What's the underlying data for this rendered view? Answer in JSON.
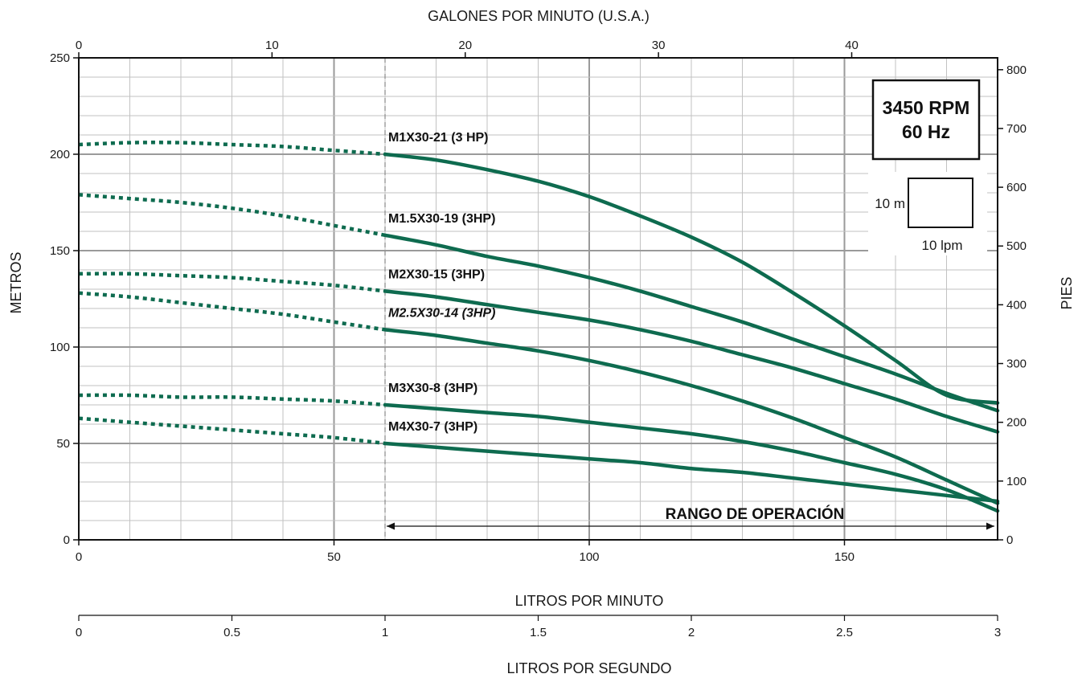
{
  "chart_data": {
    "type": "line",
    "title": "",
    "top_axis": {
      "label": "GALONES POR MINUTO (U.S.A.)",
      "ticks": [
        "0",
        "10",
        "20",
        "30",
        "40"
      ],
      "tick_values": [
        0,
        10,
        20,
        30,
        40
      ],
      "range": [
        0,
        47.55
      ]
    },
    "bottom_axis": {
      "label": "LITROS POR MINUTO",
      "ticks": [
        "0",
        "50",
        "100",
        "150"
      ],
      "tick_values": [
        0,
        50,
        100,
        150
      ],
      "range": [
        0,
        180
      ]
    },
    "secondary_bottom_axis": {
      "label": "LITROS POR SEGUNDO",
      "ticks": [
        "0",
        "0.5",
        "1",
        "1.5",
        "2",
        "2.5",
        "3"
      ],
      "tick_values": [
        0,
        0.5,
        1,
        1.5,
        2,
        2.5,
        3
      ],
      "range": [
        0,
        3
      ]
    },
    "left_axis": {
      "label": "METROS",
      "ticks": [
        "0",
        "50",
        "100",
        "150",
        "200",
        "250"
      ],
      "tick_values": [
        0,
        50,
        100,
        150,
        200,
        250
      ],
      "range": [
        0,
        250
      ]
    },
    "right_axis": {
      "label": "PIES",
      "ticks": [
        "0",
        "100",
        "200",
        "300",
        "400",
        "500",
        "600",
        "700",
        "800"
      ],
      "tick_values": [
        0,
        100,
        200,
        300,
        400,
        500,
        600,
        700,
        800
      ],
      "range": [
        0,
        820.2
      ]
    },
    "grid": true,
    "series_color": "#0e6b4f",
    "series": [
      {
        "name": "M1X30-21 (3 HP)",
        "label_italic": false,
        "dashed": [
          [
            0,
            205
          ],
          [
            10,
            206
          ],
          [
            20,
            206
          ],
          [
            30,
            205
          ],
          [
            40,
            204
          ],
          [
            50,
            202
          ],
          [
            60,
            200
          ]
        ],
        "solid": [
          [
            60,
            200
          ],
          [
            70,
            197
          ],
          [
            80,
            192
          ],
          [
            90,
            186
          ],
          [
            100,
            178
          ],
          [
            110,
            168
          ],
          [
            120,
            157
          ],
          [
            130,
            144
          ],
          [
            140,
            128
          ],
          [
            150,
            111
          ],
          [
            160,
            93
          ],
          [
            170,
            75
          ],
          [
            180,
            71
          ]
        ]
      },
      {
        "name": "M1.5X30-19 (3HP)",
        "label_italic": false,
        "dashed": [
          [
            0,
            179
          ],
          [
            10,
            177
          ],
          [
            20,
            175
          ],
          [
            30,
            172
          ],
          [
            40,
            168
          ],
          [
            50,
            163
          ],
          [
            60,
            158
          ]
        ],
        "solid": [
          [
            60,
            158
          ],
          [
            70,
            153
          ],
          [
            80,
            147
          ],
          [
            90,
            142
          ],
          [
            100,
            136
          ],
          [
            110,
            129
          ],
          [
            120,
            121
          ],
          [
            130,
            113
          ],
          [
            140,
            104
          ],
          [
            150,
            95
          ],
          [
            160,
            86
          ],
          [
            170,
            76
          ],
          [
            180,
            67
          ]
        ]
      },
      {
        "name": "M2X30-15 (3HP)",
        "label_italic": false,
        "dashed": [
          [
            0,
            138
          ],
          [
            10,
            138
          ],
          [
            20,
            137
          ],
          [
            30,
            136
          ],
          [
            40,
            134
          ],
          [
            50,
            132
          ],
          [
            60,
            129
          ]
        ],
        "solid": [
          [
            60,
            129
          ],
          [
            70,
            126
          ],
          [
            80,
            122
          ],
          [
            90,
            118
          ],
          [
            100,
            114
          ],
          [
            110,
            109
          ],
          [
            120,
            103
          ],
          [
            130,
            96
          ],
          [
            140,
            89
          ],
          [
            150,
            81
          ],
          [
            160,
            73
          ],
          [
            170,
            64
          ],
          [
            180,
            56
          ]
        ]
      },
      {
        "name": "M2.5X30-14 (3HP)",
        "label_italic": true,
        "dashed": [
          [
            0,
            128
          ],
          [
            10,
            126
          ],
          [
            20,
            123
          ],
          [
            30,
            120
          ],
          [
            40,
            117
          ],
          [
            50,
            113
          ],
          [
            60,
            109
          ]
        ],
        "solid": [
          [
            60,
            109
          ],
          [
            70,
            106
          ],
          [
            80,
            102
          ],
          [
            90,
            98
          ],
          [
            100,
            93
          ],
          [
            110,
            87
          ],
          [
            120,
            80
          ],
          [
            130,
            72
          ],
          [
            140,
            63
          ],
          [
            150,
            53
          ],
          [
            160,
            43
          ],
          [
            170,
            31
          ],
          [
            180,
            19
          ]
        ]
      },
      {
        "name": "M3X30-8 (3HP)",
        "label_italic": false,
        "dashed": [
          [
            0,
            75
          ],
          [
            10,
            75
          ],
          [
            20,
            74
          ],
          [
            30,
            74
          ],
          [
            40,
            73
          ],
          [
            50,
            72
          ],
          [
            60,
            70
          ]
        ],
        "solid": [
          [
            60,
            70
          ],
          [
            70,
            68
          ],
          [
            80,
            66
          ],
          [
            90,
            64
          ],
          [
            100,
            61
          ],
          [
            110,
            58
          ],
          [
            120,
            55
          ],
          [
            130,
            51
          ],
          [
            140,
            46
          ],
          [
            150,
            40
          ],
          [
            160,
            34
          ],
          [
            170,
            26
          ],
          [
            180,
            15
          ]
        ]
      },
      {
        "name": "M4X30-7 (3HP)",
        "label_italic": false,
        "dashed": [
          [
            0,
            63
          ],
          [
            10,
            61
          ],
          [
            20,
            59
          ],
          [
            30,
            57
          ],
          [
            40,
            55
          ],
          [
            50,
            53
          ],
          [
            60,
            50
          ]
        ],
        "solid": [
          [
            60,
            50
          ],
          [
            70,
            48
          ],
          [
            80,
            46
          ],
          [
            90,
            44
          ],
          [
            100,
            42
          ],
          [
            110,
            40
          ],
          [
            120,
            37
          ],
          [
            130,
            35
          ],
          [
            140,
            32
          ],
          [
            150,
            29
          ],
          [
            160,
            26
          ],
          [
            170,
            23
          ],
          [
            180,
            20
          ]
        ]
      }
    ],
    "annotations": {
      "speed_line1": "3450 RPM",
      "speed_line2": "60 Hz",
      "scale_height": "10 m",
      "scale_width": "10 lpm",
      "operating_range": "RANGO DE OPERACIÓN",
      "operating_range_lpm": [
        60,
        180
      ]
    }
  }
}
